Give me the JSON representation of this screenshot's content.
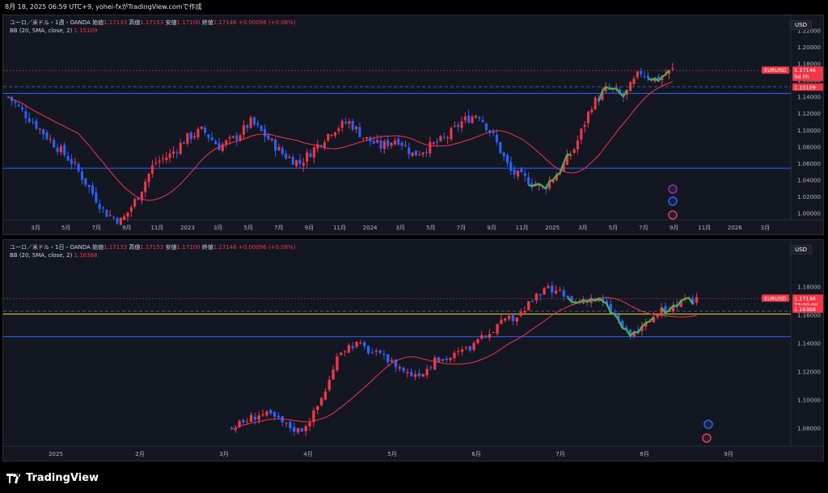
{
  "header": {
    "timestamp": "8月 18, 2025 06:59 UTC+9",
    "author": "yohei-fxがTradingView.comで作成"
  },
  "colors": {
    "up": "#f23645",
    "down": "#2962ff",
    "bb": "#f23645",
    "hline": "#2962ff",
    "dashed": "#5b6b99",
    "green": "#4caf50",
    "yellow": "#fdd835"
  },
  "top": {
    "symbol_title": "ユーロ／米ドル・1週・OANDA",
    "ohlc": {
      "open_label": "始値",
      "open": "1.17133",
      "high_label": "高値",
      "high": "1.17153",
      "low_label": "安値",
      "low": "1.17100",
      "close_label": "終値",
      "close": "1.17146",
      "change": "+0.00096 (+0.08%)"
    },
    "bb_label": "BB (20, SMA, close, 2)",
    "bb_value": "1.15109",
    "currency": "USD",
    "price_ticks": [
      "1.22000",
      "1.20000",
      "1.18000",
      "1.16000",
      "1.14000",
      "1.12000",
      "1.10000",
      "1.08000",
      "1.06000",
      "1.04000",
      "1.02000",
      "1.00000"
    ],
    "time_ticks": [
      "3月",
      "5月",
      "7月",
      "9月",
      "11月",
      "2023",
      "3月",
      "5月",
      "7月",
      "9月",
      "11月",
      "2024",
      "3月",
      "5月",
      "7月",
      "9月",
      "11月",
      "2025",
      "3月",
      "5月",
      "7月",
      "9月",
      "11月",
      "2026",
      "3月"
    ],
    "tag_symbol": "EURUSD",
    "tag_price": "1.17146",
    "tag_countdown": "5d 0h",
    "tag_bb": "1.15109"
  },
  "bottom": {
    "symbol_title": "ユーロ／米ドル・1日・OANDA",
    "ohlc": {
      "open_label": "始値",
      "open": "1.17133",
      "high_label": "高値",
      "high": "1.17153",
      "low_label": "安値",
      "low": "1.17100",
      "close_label": "終値",
      "close": "1.17146",
      "change": "+0.00096 (+0.08%)"
    },
    "bb_label": "BB (20, SMA, close, 2)",
    "bb_value": "1.16368",
    "currency": "USD",
    "price_ticks": [
      "1.18000",
      "1.16000",
      "1.14000",
      "1.12000",
      "1.10000",
      "1.08000"
    ],
    "time_ticks": [
      "2025",
      "2月",
      "3月",
      "4月",
      "5月",
      "6月",
      "7月",
      "8月",
      "9月"
    ],
    "tag_symbol": "EURUSD",
    "tag_price": "1.17146",
    "tag_countdown": "23:00:46",
    "tag_bb": "1.16368"
  },
  "footer": {
    "brand": "TradingView"
  },
  "chart_data": [
    {
      "type": "candlestick",
      "title": "ユーロ／米ドル・1週・OANDA",
      "ylim": [
        0.99,
        1.23
      ],
      "x": [
        "2022-01",
        "2022-02",
        "2022-03",
        "2022-04",
        "2022-05",
        "2022-06",
        "2022-07",
        "2022-08",
        "2022-09",
        "2022-10",
        "2022-11",
        "2022-12",
        "2023-01",
        "2023-02",
        "2023-03",
        "2023-04",
        "2023-05",
        "2023-06",
        "2023-07",
        "2023-08",
        "2023-09",
        "2023-10",
        "2023-11",
        "2023-12",
        "2024-01",
        "2024-02",
        "2024-03",
        "2024-04",
        "2024-05",
        "2024-06",
        "2024-07",
        "2024-08",
        "2024-09",
        "2024-10",
        "2024-11",
        "2024-12",
        "2025-01",
        "2025-02",
        "2025-03",
        "2025-04",
        "2025-05",
        "2025-06",
        "2025-07",
        "2025-08"
      ],
      "close": [
        1.13,
        1.12,
        1.1,
        1.08,
        1.07,
        1.05,
        1.02,
        1.0,
        0.98,
        0.99,
        1.03,
        1.06,
        1.08,
        1.07,
        1.08,
        1.1,
        1.07,
        1.09,
        1.11,
        1.09,
        1.06,
        1.06,
        1.09,
        1.1,
        1.08,
        1.08,
        1.08,
        1.07,
        1.08,
        1.07,
        1.09,
        1.1,
        1.11,
        1.09,
        1.05,
        1.04,
        1.03,
        1.04,
        1.08,
        1.13,
        1.12,
        1.15,
        1.17,
        1.171
      ],
      "series": [
        {
          "name": "BB (20, SMA, close, 2)",
          "last": 1.15109
        }
      ],
      "hlines": [
        1.145,
        1.055
      ]
    },
    {
      "type": "candlestick",
      "title": "ユーロ／米ドル・1日・OANDA",
      "ylim": [
        1.07,
        1.19
      ],
      "x": [
        "2025-03-01",
        "2025-03-10",
        "2025-03-20",
        "2025-04-01",
        "2025-04-10",
        "2025-04-20",
        "2025-05-01",
        "2025-05-10",
        "2025-05-20",
        "2025-06-01",
        "2025-06-10",
        "2025-06-20",
        "2025-07-01",
        "2025-07-10",
        "2025-07-20",
        "2025-08-01",
        "2025-08-10",
        "2025-08-15"
      ],
      "close": [
        1.08,
        1.09,
        1.085,
        1.08,
        1.11,
        1.14,
        1.13,
        1.12,
        1.125,
        1.13,
        1.14,
        1.155,
        1.175,
        1.17,
        1.165,
        1.145,
        1.165,
        1.17146
      ],
      "series": [
        {
          "name": "BB (20, SMA, close, 2)",
          "last": 1.16368
        }
      ],
      "hlines": [
        1.16,
        1.145
      ]
    }
  ]
}
